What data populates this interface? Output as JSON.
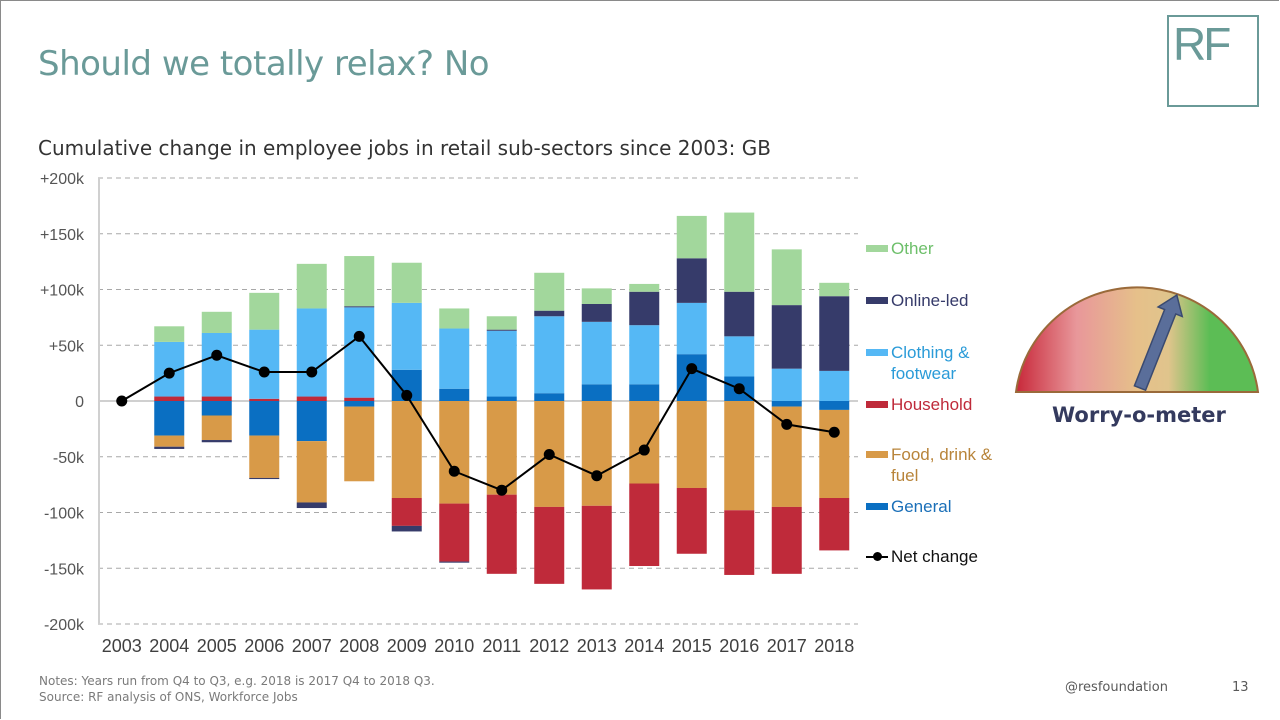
{
  "slide": {
    "title": "Should we totally relax? No",
    "logo_text": "RF",
    "subtitle": "Cumulative change in employee jobs in retail sub-sectors since 2003: GB",
    "notes_line1": "Notes: Years run from Q4 to Q3, e.g. 2018 is 2017 Q4 to 2018 Q3.",
    "notes_line2": "Source: RF analysis of ONS, Workforce Jobs",
    "handle": "@resfoundation",
    "page_number": "13"
  },
  "gauge": {
    "label": "Worry-o-meter",
    "scale": "worried (red, left) to relaxed (green, right)",
    "level": 0.62,
    "colors": [
      "#c8283a",
      "#e8979a",
      "#e6c08a",
      "#5cbd55"
    ]
  },
  "chart_data": {
    "type": "bar",
    "stacked": true,
    "title": "Cumulative change in employee jobs in retail sub-sectors since 2003: GB",
    "xlabel": "",
    "ylabel": "",
    "ylim": [
      -200,
      200
    ],
    "yunit": "thousand jobs",
    "yticks": [
      200,
      150,
      100,
      50,
      0,
      -50,
      -100,
      -150,
      -200
    ],
    "ytick_labels": [
      "+200k",
      "+150k",
      "+100k",
      "+50k",
      "0",
      "-50k",
      "-100k",
      "-150k",
      "-200k"
    ],
    "grid": "horizontal dashed",
    "legend_position": "right",
    "categories": [
      "2003",
      "2004",
      "2005",
      "2006",
      "2007",
      "2008",
      "2009",
      "2010",
      "2011",
      "2012",
      "2013",
      "2014",
      "2015",
      "2016",
      "2017",
      "2018"
    ],
    "series": [
      {
        "name": "General",
        "key": "general",
        "color": "#0a6fc2",
        "values": [
          0,
          -31,
          -13,
          -31,
          -36,
          -5,
          28,
          11,
          4,
          7,
          15,
          15,
          42,
          22,
          -5,
          -8
        ]
      },
      {
        "name": "Food, drink & fuel",
        "key": "food",
        "color": "#d89a48",
        "values": [
          0,
          -10,
          -22,
          -38,
          -55,
          -67,
          -87,
          -92,
          -84,
          -95,
          -94,
          -74,
          -78,
          -98,
          -90,
          -79
        ]
      },
      {
        "name": "Household",
        "key": "household",
        "color": "#bf2a3a",
        "values": [
          0,
          4,
          4,
          2,
          4,
          3,
          -25,
          -52,
          -71,
          -69,
          -75,
          -74,
          -59,
          -58,
          -60,
          -47
        ]
      },
      {
        "name": "Clothing & footwear",
        "key": "clothing",
        "color": "#55b8f5",
        "values": [
          0,
          49,
          57,
          62,
          79,
          81,
          60,
          54,
          59,
          69,
          56,
          53,
          46,
          36,
          29,
          27
        ]
      },
      {
        "name": "Online-led",
        "key": "online",
        "color": "#363b6a",
        "values": [
          0,
          -2,
          -2,
          -1,
          -5,
          1,
          -5,
          -1,
          1,
          5,
          16,
          30,
          40,
          40,
          57,
          67
        ]
      },
      {
        "name": "Other",
        "key": "other",
        "color": "#a2d79c",
        "values": [
          0,
          14,
          19,
          33,
          40,
          45,
          36,
          18,
          12,
          34,
          14,
          7,
          38,
          71,
          50,
          12
        ]
      }
    ],
    "line_series": {
      "name": "Net change",
      "color": "#000000",
      "values": [
        0,
        25,
        41,
        26,
        26,
        58,
        5,
        -63,
        -80,
        -48,
        -67,
        -44,
        29,
        11,
        -21,
        -28
      ]
    },
    "legend_order": [
      "Other",
      "Online-led",
      "Clothing & footwear",
      "Household",
      "Food, drink & fuel",
      "General",
      "Net change"
    ]
  },
  "legend": {
    "items": [
      {
        "label": "Other",
        "color": "#6dbf6a",
        "swatch": "#a2d79c"
      },
      {
        "label": "Online-led",
        "color": "#363b6a",
        "swatch": "#363b6a"
      },
      {
        "label": "Clothing & footwear",
        "color": "#2a9bd8",
        "swatch": "#55b8f5"
      },
      {
        "label": "Household",
        "color": "#bf2a3a",
        "swatch": "#bf2a3a"
      },
      {
        "label": "Food, drink & fuel",
        "color": "#b8843a",
        "swatch": "#d89a48"
      },
      {
        "label": "General",
        "color": "#1a6fb8",
        "swatch": "#0a6fc2"
      },
      {
        "label": "Net change",
        "color": "#111111",
        "swatch": "line-marker"
      }
    ]
  }
}
